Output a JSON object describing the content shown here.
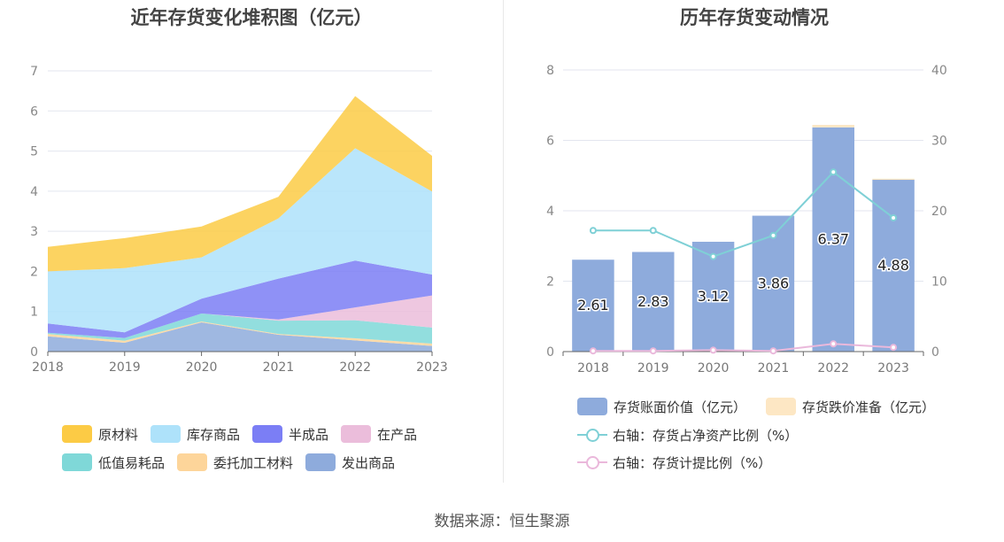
{
  "left_chart": {
    "title": "近年存货变化堆积图（亿元）",
    "legend_row1": [
      {
        "name": "原材料",
        "color": "#fccb45"
      },
      {
        "name": "库存商品",
        "color": "#aee2fa"
      },
      {
        "name": "半成品",
        "color": "#7b7ef5"
      },
      {
        "name": "在产品",
        "color": "#ebbddb"
      }
    ],
    "legend_row2": [
      {
        "name": "低值易耗品",
        "color": "#7fd8d8"
      },
      {
        "name": "委托加工材料",
        "color": "#fdd59a"
      },
      {
        "name": "发出商品",
        "color": "#8eabdc"
      }
    ]
  },
  "right_chart": {
    "title": "历年存货变动情况",
    "legend_row1": [
      {
        "name": "存货账面价值（亿元）",
        "color": "#8eabdc"
      },
      {
        "name": "存货跌价准备（亿元）",
        "color": "#fde7c4"
      }
    ],
    "legend_row2": [
      {
        "name": "右轴：存货占净资产比例（%）",
        "color": "#7fd0d6"
      }
    ],
    "legend_row3": [
      {
        "name": "右轴：存货计提比例（%）",
        "color": "#eab8db"
      }
    ]
  },
  "source": "数据来源：恒生聚源",
  "chart_data": [
    {
      "type": "area",
      "stacked": true,
      "title": "近年存货变化堆积图（亿元）",
      "x": [
        "2018",
        "2019",
        "2020",
        "2021",
        "2022",
        "2023"
      ],
      "ylim": [
        0,
        7
      ],
      "yticks": [
        0,
        1,
        2,
        3,
        4,
        5,
        6,
        7
      ],
      "grid": true,
      "legend_position": "bottom",
      "series": [
        {
          "name": "发出商品",
          "color": "#8eabdc",
          "values": [
            0.38,
            0.22,
            0.73,
            0.42,
            0.28,
            0.14
          ]
        },
        {
          "name": "委托加工材料",
          "color": "#fdd59a",
          "values": [
            0.06,
            0.05,
            0.02,
            0.02,
            0.05,
            0.06
          ]
        },
        {
          "name": "低值易耗品",
          "color": "#7fd8d8",
          "values": [
            0.03,
            0.07,
            0.2,
            0.33,
            0.45,
            0.4
          ]
        },
        {
          "name": "在产品",
          "color": "#ebbddb",
          "values": [
            0.0,
            0.0,
            0.0,
            0.03,
            0.32,
            0.8
          ]
        },
        {
          "name": "半成品",
          "color": "#7b7ef5",
          "values": [
            0.23,
            0.14,
            0.37,
            1.02,
            1.17,
            0.52
          ]
        },
        {
          "name": "库存商品",
          "color": "#aee2fa",
          "values": [
            1.3,
            1.6,
            1.03,
            1.5,
            2.8,
            2.07
          ]
        },
        {
          "name": "原材料",
          "color": "#fccb45",
          "values": [
            0.61,
            0.75,
            0.77,
            0.54,
            1.3,
            0.89
          ]
        }
      ]
    },
    {
      "type": "bar",
      "stacked": true,
      "title": "历年存货变动情况",
      "x": [
        "2018",
        "2019",
        "2020",
        "2021",
        "2022",
        "2023"
      ],
      "ylim_left": [
        0,
        8
      ],
      "yticks_left": [
        0,
        2,
        4,
        6,
        8
      ],
      "ylim_right": [
        0,
        40
      ],
      "yticks_right": [
        0,
        10,
        20,
        30,
        40
      ],
      "grid": true,
      "legend_position": "bottom",
      "series": [
        {
          "name": "存货账面价值（亿元）",
          "type": "bar",
          "axis": "left",
          "color": "#8eabdc",
          "values": [
            2.61,
            2.83,
            3.12,
            3.86,
            6.37,
            4.88
          ],
          "labels": [
            "2.61",
            "2.83",
            "3.12",
            "3.86",
            "6.37",
            "4.88"
          ]
        },
        {
          "name": "存货跌价准备（亿元）",
          "type": "bar",
          "axis": "left",
          "color": "#fde7c4",
          "values": [
            0.0,
            0.0,
            0.0,
            0.0,
            0.07,
            0.03
          ]
        },
        {
          "name": "右轴：存货占净资产比例（%）",
          "type": "line",
          "axis": "right",
          "color": "#7fd0d6",
          "values": [
            17.2,
            17.2,
            13.5,
            16.5,
            25.5,
            19.0
          ]
        },
        {
          "name": "右轴：存货计提比例（%）",
          "type": "line",
          "axis": "right",
          "color": "#eab8db",
          "values": [
            0.1,
            0.1,
            0.2,
            0.1,
            1.1,
            0.6
          ]
        }
      ]
    }
  ]
}
